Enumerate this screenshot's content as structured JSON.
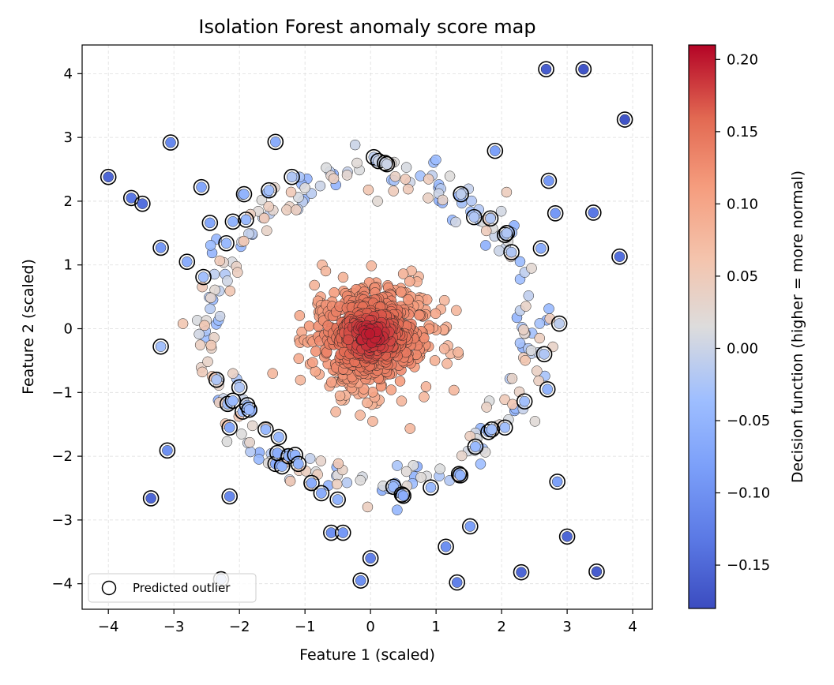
{
  "chart_data": {
    "type": "scatter",
    "title": "Isolation Forest anomaly score map",
    "xlabel": "Feature 1 (scaled)",
    "ylabel": "Feature 2 (scaled)",
    "xlim": [
      -4.4,
      4.3
    ],
    "ylim": [
      -4.4,
      4.45
    ],
    "xticks": [
      -4,
      -3,
      -2,
      -1,
      0,
      1,
      2,
      3,
      4
    ],
    "yticks": [
      -4,
      -3,
      -2,
      -1,
      0,
      1,
      2,
      3,
      4
    ],
    "xtick_labels": [
      "−4",
      "−3",
      "−2",
      "−1",
      "0",
      "1",
      "2",
      "3",
      "4"
    ],
    "ytick_labels": [
      "−4",
      "−3",
      "−2",
      "−1",
      "0",
      "1",
      "2",
      "3",
      "4"
    ],
    "grid": true,
    "legend": {
      "label": "Predicted outlier",
      "position": "lower-left"
    },
    "colorbar": {
      "label": "Decision function (higher = more normal)",
      "range": [
        -0.18,
        0.21
      ],
      "ticks": [
        -0.15,
        -0.1,
        -0.05,
        0.0,
        0.05,
        0.1,
        0.15,
        0.2
      ],
      "tick_labels": [
        "−0.15",
        "−0.10",
        "−0.05",
        "0.00",
        "0.05",
        "0.10",
        "0.15",
        "0.20"
      ],
      "colormap": "coolwarm",
      "color_low": "#3b4cc0",
      "color_mid": "#dddddd",
      "color_high": "#b40426"
    },
    "clusters": {
      "core": {
        "center": [
          0.0,
          -0.1
        ],
        "spread": [
          0.45,
          0.4
        ],
        "count": 700,
        "score_range": [
          0.08,
          0.21
        ]
      },
      "ring": {
        "radius": 2.45,
        "count": 260,
        "score_range": [
          -0.06,
          0.06
        ]
      }
    },
    "outliers": [
      [
        -4.0,
        2.38,
        -0.15
      ],
      [
        -3.65,
        2.05,
        -0.13
      ],
      [
        -3.48,
        1.96,
        -0.14
      ],
      [
        -3.35,
        -2.66,
        -0.15
      ],
      [
        -3.2,
        1.27,
        -0.09
      ],
      [
        -3.2,
        -0.28,
        -0.03
      ],
      [
        -3.1,
        -1.91,
        -0.1
      ],
      [
        -3.05,
        2.92,
        -0.11
      ],
      [
        -2.8,
        1.05,
        -0.06
      ],
      [
        -2.58,
        2.22,
        -0.07
      ],
      [
        -2.55,
        0.81,
        -0.03
      ],
      [
        -2.45,
        1.66,
        -0.07
      ],
      [
        -2.35,
        -0.8,
        -0.02
      ],
      [
        -2.28,
        -3.93,
        -0.01
      ],
      [
        -2.2,
        1.34,
        -0.04
      ],
      [
        -2.18,
        -1.18,
        -0.03
      ],
      [
        -2.15,
        -1.55,
        -0.07
      ],
      [
        -2.15,
        -2.63,
        -0.11
      ],
      [
        -2.1,
        -1.13,
        -0.04
      ],
      [
        -2.1,
        1.68,
        -0.05
      ],
      [
        -2.0,
        -0.92,
        -0.02
      ],
      [
        -1.95,
        -1.3,
        -0.03
      ],
      [
        -1.93,
        2.11,
        -0.05
      ],
      [
        -1.9,
        1.71,
        -0.04
      ],
      [
        -1.88,
        -1.2,
        -0.03
      ],
      [
        -1.85,
        -1.27,
        -0.04
      ],
      [
        -1.6,
        -1.58,
        -0.04
      ],
      [
        -1.55,
        2.17,
        -0.03
      ],
      [
        -1.45,
        2.93,
        -0.06
      ],
      [
        -1.45,
        -2.12,
        -0.06
      ],
      [
        -1.42,
        -1.95,
        -0.06
      ],
      [
        -1.4,
        -1.7,
        -0.04
      ],
      [
        -1.35,
        -2.16,
        -0.05
      ],
      [
        -1.25,
        -2.0,
        -0.05
      ],
      [
        -1.2,
        2.38,
        -0.02
      ],
      [
        -1.15,
        -1.98,
        -0.05
      ],
      [
        -1.1,
        -2.12,
        -0.05
      ],
      [
        -0.9,
        -2.42,
        -0.06
      ],
      [
        -0.75,
        -2.58,
        -0.06
      ],
      [
        -0.6,
        -3.2,
        -0.1
      ],
      [
        -0.5,
        -2.68,
        -0.05
      ],
      [
        -0.42,
        -3.2,
        -0.09
      ],
      [
        -0.15,
        -3.95,
        -0.1
      ],
      [
        0.0,
        -3.6,
        -0.12
      ],
      [
        0.05,
        2.69,
        -0.01
      ],
      [
        0.12,
        2.63,
        0.0
      ],
      [
        0.22,
        2.6,
        0.0
      ],
      [
        0.25,
        2.58,
        0.0
      ],
      [
        0.35,
        -2.48,
        -0.04
      ],
      [
        0.48,
        -2.6,
        -0.05
      ],
      [
        0.5,
        -2.62,
        -0.06
      ],
      [
        0.92,
        -2.49,
        -0.04
      ],
      [
        1.15,
        -3.42,
        -0.1
      ],
      [
        1.32,
        -3.98,
        -0.12
      ],
      [
        1.35,
        -2.28,
        -0.05
      ],
      [
        1.37,
        -2.3,
        -0.05
      ],
      [
        1.38,
        2.11,
        -0.01
      ],
      [
        1.52,
        -3.1,
        -0.08
      ],
      [
        1.58,
        1.75,
        -0.02
      ],
      [
        1.6,
        -1.85,
        -0.04
      ],
      [
        1.8,
        -1.62,
        -0.04
      ],
      [
        1.83,
        1.73,
        -0.02
      ],
      [
        1.85,
        -1.58,
        -0.03
      ],
      [
        1.9,
        2.79,
        -0.08
      ],
      [
        2.05,
        1.47,
        -0.02
      ],
      [
        2.08,
        1.5,
        -0.02
      ],
      [
        2.05,
        -1.55,
        -0.03
      ],
      [
        2.15,
        1.2,
        -0.02
      ],
      [
        2.3,
        -3.82,
        -0.15
      ],
      [
        2.35,
        -1.14,
        -0.03
      ],
      [
        2.6,
        1.26,
        -0.06
      ],
      [
        2.65,
        -0.4,
        -0.02
      ],
      [
        2.68,
        4.07,
        -0.16
      ],
      [
        2.7,
        -0.95,
        -0.05
      ],
      [
        2.72,
        2.32,
        -0.09
      ],
      [
        2.82,
        1.81,
        -0.09
      ],
      [
        2.85,
        -2.4,
        -0.08
      ],
      [
        2.88,
        0.08,
        -0.01
      ],
      [
        3.0,
        -3.26,
        -0.15
      ],
      [
        3.25,
        4.07,
        -0.17
      ],
      [
        3.4,
        1.82,
        -0.13
      ],
      [
        3.45,
        -3.81,
        -0.16
      ],
      [
        3.8,
        1.13,
        -0.14
      ],
      [
        3.88,
        3.28,
        -0.17
      ]
    ]
  }
}
